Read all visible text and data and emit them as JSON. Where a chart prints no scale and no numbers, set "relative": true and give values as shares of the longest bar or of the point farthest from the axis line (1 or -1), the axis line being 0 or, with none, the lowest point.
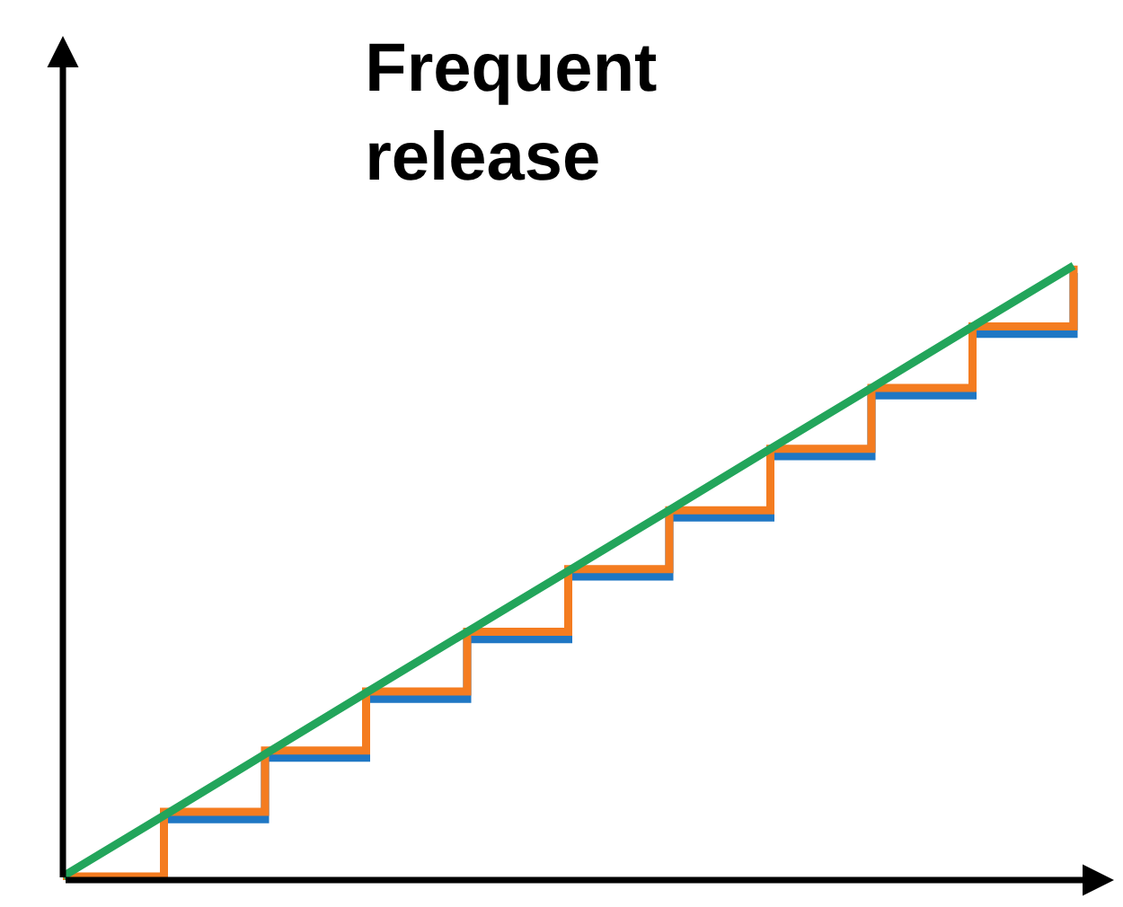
{
  "chart_data": {
    "type": "step",
    "title": "Frequent release",
    "relative": true,
    "tick_labels": false,
    "marker": "none",
    "line_style": "solid",
    "categories": [
      null,
      null,
      null,
      null,
      null,
      null,
      null,
      null,
      null,
      null,
      null
    ],
    "series": [
      {
        "color": "#1f77c4",
        "values": [
          -0.006,
          0.099,
          0.199,
          0.295,
          0.392,
          0.494,
          0.59,
          0.69,
          0.789,
          0.889,
          0.988
        ]
      },
      {
        "color": "#f47c20",
        "values": [
          0.006,
          0.111,
          0.211,
          0.307,
          0.404,
          0.506,
          0.602,
          0.702,
          0.801,
          0.901,
          1.0
        ]
      },
      {
        "type": "line",
        "color": "#22a55b",
        "values": [
          0.006,
          0.105,
          0.205,
          0.305,
          0.404,
          0.503,
          0.602,
          0.702,
          0.801,
          0.901,
          1.0
        ]
      }
    ]
  }
}
